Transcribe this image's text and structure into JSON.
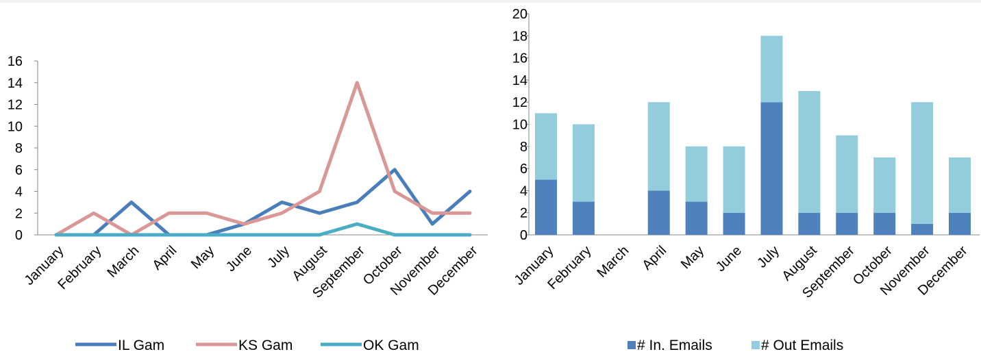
{
  "chart_data": [
    {
      "type": "line",
      "categories": [
        "January",
        "February",
        "March",
        "April",
        "May",
        "June",
        "July",
        "August",
        "September",
        "October",
        "November",
        "December"
      ],
      "series": [
        {
          "name": "IL Gam",
          "values": [
            0,
            0,
            3,
            0,
            0,
            1,
            3,
            2,
            3,
            6,
            1,
            4
          ],
          "color": "#4a7ebb"
        },
        {
          "name": "KS Gam",
          "values": [
            0,
            2,
            0,
            2,
            2,
            1,
            2,
            4,
            14,
            4,
            2,
            2
          ],
          "color": "#d99795"
        },
        {
          "name": "OK Gam",
          "values": [
            0,
            0,
            0,
            0,
            0,
            0,
            0,
            0,
            1,
            0,
            0,
            0
          ],
          "color": "#4bacc6"
        }
      ],
      "ylim": [
        0,
        16
      ],
      "yticks": [
        0,
        2,
        4,
        6,
        8,
        10,
        12,
        14,
        16
      ],
      "grid": false,
      "legend": "bottom"
    },
    {
      "type": "bar",
      "stacked": true,
      "categories": [
        "January",
        "February",
        "March",
        "April",
        "May",
        "June",
        "July",
        "August",
        "September",
        "October",
        "November",
        "December"
      ],
      "series": [
        {
          "name": "# In. Emails",
          "values": [
            5,
            3,
            0,
            4,
            3,
            2,
            12,
            2,
            2,
            2,
            1,
            2
          ],
          "color": "#4f81bd"
        },
        {
          "name": "# Out Emails",
          "values": [
            6,
            7,
            0,
            8,
            5,
            6,
            6,
            11,
            7,
            5,
            11,
            5
          ],
          "color": "#93cddd"
        }
      ],
      "ylim": [
        0,
        20
      ],
      "yticks": [
        0,
        2,
        4,
        6,
        8,
        10,
        12,
        14,
        16,
        18,
        20
      ],
      "grid": false,
      "legend": "bottom"
    }
  ]
}
